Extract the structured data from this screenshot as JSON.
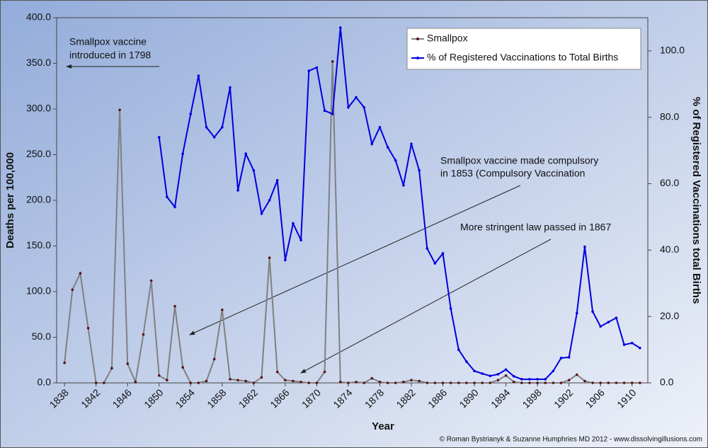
{
  "chart_data": {
    "type": "line",
    "x": [
      1838,
      1839,
      1840,
      1841,
      1842,
      1843,
      1844,
      1845,
      1846,
      1847,
      1848,
      1849,
      1850,
      1851,
      1852,
      1853,
      1854,
      1855,
      1856,
      1857,
      1858,
      1859,
      1860,
      1861,
      1862,
      1863,
      1864,
      1865,
      1866,
      1867,
      1868,
      1869,
      1870,
      1871,
      1872,
      1873,
      1874,
      1875,
      1876,
      1877,
      1878,
      1879,
      1880,
      1881,
      1882,
      1883,
      1884,
      1885,
      1886,
      1887,
      1888,
      1889,
      1890,
      1891,
      1892,
      1893,
      1894,
      1895,
      1896,
      1897,
      1898,
      1899,
      1900,
      1901,
      1902,
      1903,
      1904,
      1905,
      1906,
      1907,
      1908,
      1909,
      1910,
      1911
    ],
    "series": [
      {
        "name": "Smallpox",
        "color": "#808080",
        "marker_color": "#5a1010",
        "axis": "y",
        "values": [
          22,
          102,
          120,
          60,
          0,
          0,
          16,
          299,
          21,
          1,
          53,
          112,
          8,
          3,
          84,
          17,
          0,
          0,
          2,
          26,
          80,
          4,
          3,
          2,
          0,
          6,
          137,
          12,
          3,
          2,
          1,
          0,
          0,
          12,
          352,
          1,
          0,
          1,
          0,
          5,
          1,
          0,
          0,
          1,
          3,
          2,
          0,
          0,
          0,
          0,
          0,
          0,
          0,
          0,
          0,
          3,
          8,
          1,
          0,
          0,
          0,
          0,
          0,
          0,
          3,
          9,
          2,
          0,
          0,
          0,
          0,
          0,
          0,
          0
        ]
      },
      {
        "name": "% of Registered Vaccinations to Total Births",
        "color": "#0000e0",
        "marker_color": "#0000e0",
        "axis": "y2",
        "values": [
          null,
          null,
          null,
          null,
          null,
          null,
          null,
          null,
          null,
          null,
          null,
          null,
          74,
          56,
          53,
          69,
          81,
          92.5,
          77,
          74,
          77,
          89,
          58,
          69,
          64,
          51,
          55,
          61,
          37,
          48,
          43,
          94,
          95,
          82,
          81,
          107,
          83,
          86,
          83,
          72,
          77,
          71,
          67,
          59.5,
          72,
          64,
          40.5,
          36,
          39,
          22.4,
          10,
          6.4,
          3.6,
          2.8,
          2.1,
          2.6,
          4,
          2,
          1.1,
          1.1,
          1.1,
          1.1,
          3.6,
          7.5,
          7.7,
          21,
          41,
          21.5,
          17,
          18.3,
          19.6,
          11.5,
          12,
          10.5
        ]
      }
    ],
    "xlim": [
      1837,
      1912
    ],
    "xticks": [
      1838,
      1842,
      1846,
      1850,
      1854,
      1858,
      1862,
      1866,
      1870,
      1874,
      1878,
      1882,
      1886,
      1890,
      1894,
      1898,
      1902,
      1906,
      1910
    ],
    "ylim": [
      0,
      400
    ],
    "yticks": [
      {
        "value": 0,
        "label": "0.0"
      },
      {
        "value": 50,
        "label": "50.0"
      },
      {
        "value": 100,
        "label": "100.0"
      },
      {
        "value": 150,
        "label": "150.0"
      },
      {
        "value": 200,
        "label": "200.0"
      },
      {
        "value": 250,
        "label": "250.0"
      },
      {
        "value": 300,
        "label": "300.0"
      },
      {
        "value": 350,
        "label": "350.0"
      },
      {
        "value": 400,
        "label": "400.0"
      }
    ],
    "y2lim": [
      0,
      110
    ],
    "y2ticks": [
      {
        "value": 0,
        "label": "0.0"
      },
      {
        "value": 20,
        "label": "20.0"
      },
      {
        "value": 40,
        "label": "40.0"
      },
      {
        "value": 60,
        "label": "60.0"
      },
      {
        "value": 80,
        "label": "80.0"
      },
      {
        "value": 100,
        "label": "100.0"
      }
    ],
    "xlabel": "Year",
    "ylabel": "Deaths per 100,000",
    "y2label": "% of Registered Vaccinations total Births",
    "legend": "top-right",
    "annotations": [
      {
        "lines": [
          "Smallpox vaccine",
          "introduced in 1798"
        ]
      },
      {
        "lines": [
          "Smallpox vaccine made compulsory",
          "in 1853 (Compulsory Vaccination"
        ]
      },
      {
        "lines": [
          "More stringent law passed in 1867"
        ]
      }
    ],
    "credit": "© Roman Bystrianyk & Suzanne Humphries MD 2012 - www.dissolvingillusions.com"
  }
}
